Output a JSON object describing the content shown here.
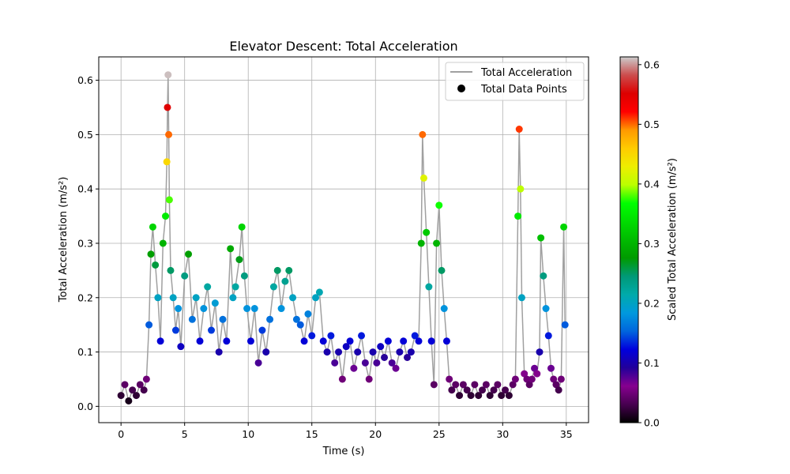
{
  "chart_data": {
    "type": "scatter",
    "title": "Elevator Descent: Total Acceleration",
    "xlabel": "Time (s)",
    "ylabel": "Total Acceleration (m/s²)",
    "xlim": [
      -1.75,
      36.75
    ],
    "ylim": [
      -0.03,
      0.643
    ],
    "xticks": [
      0,
      5,
      10,
      15,
      20,
      25,
      30,
      35
    ],
    "xtick_labels": [
      "0",
      "5",
      "10",
      "15",
      "20",
      "25",
      "30",
      "35"
    ],
    "yticks": [
      0.0,
      0.1,
      0.2,
      0.3,
      0.4,
      0.5,
      0.6
    ],
    "ytick_labels": [
      "0.0",
      "0.1",
      "0.2",
      "0.3",
      "0.4",
      "0.5",
      "0.6"
    ],
    "grid": true,
    "legend": {
      "placement": "upper right",
      "entries": [
        {
          "label": "Total Acceleration",
          "kind": "line",
          "color": "#a0a0a0"
        },
        {
          "label": "Total Data Points",
          "kind": "marker",
          "color": "#000000"
        }
      ]
    },
    "colorbar": {
      "label": "Scaled Total Acceleration (m/s²)",
      "colormap": "nipy_spectral",
      "range": [
        0.0,
        0.613
      ],
      "ticks": [
        0.0,
        0.1,
        0.2,
        0.3,
        0.4,
        0.5,
        0.6
      ],
      "tick_labels": [
        "0.0",
        "0.1",
        "0.2",
        "0.3",
        "0.4",
        "0.5",
        "0.6"
      ]
    },
    "series": [
      {
        "kind": "line+scatter",
        "x": [
          0.0,
          0.3,
          0.6,
          0.9,
          1.2,
          1.5,
          1.8,
          2.0,
          2.2,
          2.35,
          2.5,
          2.7,
          2.9,
          3.1,
          3.3,
          3.5,
          3.6,
          3.65,
          3.7,
          3.75,
          3.8,
          3.9,
          4.1,
          4.3,
          4.5,
          4.7,
          5.0,
          5.3,
          5.6,
          5.9,
          6.2,
          6.5,
          6.8,
          7.1,
          7.4,
          7.7,
          8.0,
          8.3,
          8.6,
          8.8,
          9.0,
          9.3,
          9.5,
          9.7,
          9.9,
          10.2,
          10.5,
          10.8,
          11.1,
          11.4,
          11.7,
          12.0,
          12.3,
          12.6,
          12.9,
          13.2,
          13.5,
          13.8,
          14.1,
          14.4,
          14.7,
          15.0,
          15.3,
          15.6,
          15.9,
          16.2,
          16.5,
          16.8,
          17.1,
          17.4,
          17.7,
          18.0,
          18.3,
          18.6,
          18.9,
          19.2,
          19.5,
          19.8,
          20.1,
          20.4,
          20.7,
          21.0,
          21.3,
          21.6,
          21.9,
          22.2,
          22.5,
          22.8,
          23.1,
          23.4,
          23.6,
          23.7,
          23.8,
          24.0,
          24.2,
          24.4,
          24.6,
          24.8,
          25.0,
          25.2,
          25.4,
          25.6,
          25.8,
          26.0,
          26.3,
          26.6,
          26.9,
          27.2,
          27.5,
          27.8,
          28.1,
          28.4,
          28.7,
          29.0,
          29.3,
          29.6,
          29.9,
          30.2,
          30.5,
          30.8,
          31.0,
          31.2,
          31.3,
          31.4,
          31.5,
          31.7,
          31.9,
          32.1,
          32.3,
          32.5,
          32.7,
          32.9,
          33.0,
          33.2,
          33.4,
          33.6,
          33.8,
          34.0,
          34.2,
          34.4,
          34.6,
          34.8,
          34.9
        ],
        "y": [
          0.02,
          0.04,
          0.01,
          0.03,
          0.02,
          0.04,
          0.03,
          0.05,
          0.15,
          0.28,
          0.33,
          0.26,
          0.2,
          0.12,
          0.3,
          0.35,
          0.45,
          0.55,
          0.61,
          0.5,
          0.38,
          0.25,
          0.2,
          0.14,
          0.18,
          0.11,
          0.24,
          0.28,
          0.16,
          0.2,
          0.12,
          0.18,
          0.22,
          0.14,
          0.19,
          0.1,
          0.16,
          0.12,
          0.29,
          0.2,
          0.22,
          0.27,
          0.33,
          0.24,
          0.18,
          0.12,
          0.18,
          0.08,
          0.14,
          0.1,
          0.16,
          0.22,
          0.25,
          0.18,
          0.23,
          0.25,
          0.2,
          0.16,
          0.15,
          0.12,
          0.17,
          0.13,
          0.2,
          0.21,
          0.12,
          0.1,
          0.13,
          0.08,
          0.1,
          0.05,
          0.11,
          0.12,
          0.07,
          0.1,
          0.13,
          0.08,
          0.05,
          0.1,
          0.08,
          0.11,
          0.09,
          0.12,
          0.08,
          0.07,
          0.1,
          0.12,
          0.09,
          0.1,
          0.13,
          0.12,
          0.3,
          0.5,
          0.42,
          0.32,
          0.22,
          0.12,
          0.04,
          0.3,
          0.37,
          0.25,
          0.18,
          0.12,
          0.05,
          0.03,
          0.04,
          0.02,
          0.04,
          0.03,
          0.02,
          0.04,
          0.02,
          0.03,
          0.04,
          0.02,
          0.03,
          0.04,
          0.02,
          0.03,
          0.02,
          0.04,
          0.05,
          0.35,
          0.51,
          0.4,
          0.2,
          0.06,
          0.05,
          0.04,
          0.05,
          0.07,
          0.06,
          0.1,
          0.31,
          0.24,
          0.18,
          0.13,
          0.07,
          0.05,
          0.04,
          0.03,
          0.05,
          0.33,
          0.15
        ]
      }
    ]
  }
}
